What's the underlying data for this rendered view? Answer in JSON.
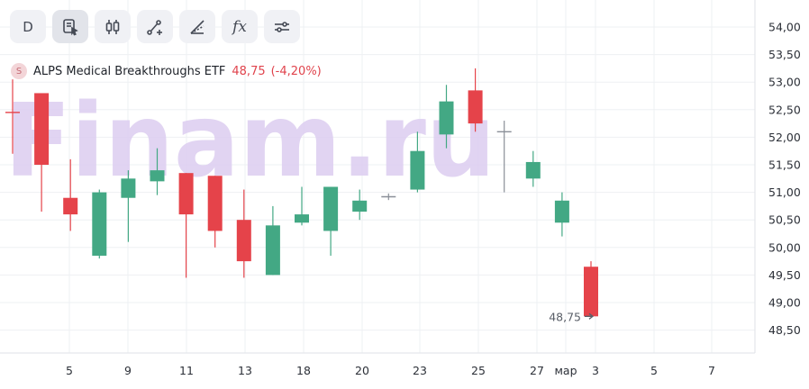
{
  "toolbar": {
    "interval_label": "D",
    "fx_label": "fx",
    "buttons": [
      "interval",
      "script-editor",
      "chart-type",
      "drawing-tools",
      "line-tools",
      "indicators",
      "settings"
    ]
  },
  "legend": {
    "badge": "S",
    "name": "ALPS Medical Breakthroughs ETF",
    "price": "48,75",
    "change": "(-4,20%)"
  },
  "watermark": "Finam.ru",
  "colors": {
    "up": "#43a884",
    "down": "#e5434a",
    "neutral": "#8a8f98",
    "grid": "#eef0f3",
    "watermark": "#dccdf0"
  },
  "chart_data": {
    "type": "candlestick",
    "title": "ALPS Medical Breakthroughs ETF",
    "ylim": [
      48.2,
      54.3
    ],
    "y_ticks": [
      "54,00",
      "53,50",
      "53,00",
      "52,50",
      "52,00",
      "51,50",
      "51,00",
      "50,50",
      "50,00",
      "49,50",
      "49,00",
      "48,50"
    ],
    "x_ticks": [
      "5",
      "9",
      "11",
      "13",
      "18",
      "20",
      "23",
      "25",
      "27",
      "мар",
      "3",
      "5",
      "7"
    ],
    "last_price_label": "48,75",
    "candles": [
      {
        "o": 52.45,
        "h": 53.05,
        "l": 51.7,
        "c": 52.45
      },
      {
        "o": 52.8,
        "h": 52.8,
        "l": 50.65,
        "c": 51.5
      },
      {
        "o": 50.9,
        "h": 51.6,
        "l": 50.3,
        "c": 50.6
      },
      {
        "o": 49.85,
        "h": 51.05,
        "l": 49.8,
        "c": 51.0
      },
      {
        "o": 50.9,
        "h": 51.4,
        "l": 50.1,
        "c": 51.25
      },
      {
        "o": 51.2,
        "h": 51.8,
        "l": 50.95,
        "c": 51.4
      },
      {
        "o": 51.35,
        "h": 51.35,
        "l": 49.45,
        "c": 50.6
      },
      {
        "o": 51.3,
        "h": 51.3,
        "l": 50.0,
        "c": 50.3
      },
      {
        "o": 50.5,
        "h": 51.05,
        "l": 49.45,
        "c": 49.75
      },
      {
        "o": 49.5,
        "h": 50.75,
        "l": 49.5,
        "c": 50.4
      },
      {
        "o": 50.45,
        "h": 51.1,
        "l": 50.4,
        "c": 50.6
      },
      {
        "o": 50.3,
        "h": 51.1,
        "l": 49.85,
        "c": 51.1
      },
      {
        "o": 50.65,
        "h": 51.05,
        "l": 50.5,
        "c": 50.85
      },
      {
        "o": 50.92,
        "h": 50.98,
        "l": 50.86,
        "c": 50.92
      },
      {
        "o": 51.05,
        "h": 52.1,
        "l": 51.0,
        "c": 51.75
      },
      {
        "o": 52.05,
        "h": 52.95,
        "l": 51.8,
        "c": 52.65
      },
      {
        "o": 52.85,
        "h": 53.25,
        "l": 52.1,
        "c": 52.25
      },
      {
        "o": 52.1,
        "h": 52.3,
        "l": 51.0,
        "c": 52.1
      },
      {
        "o": 51.25,
        "h": 51.75,
        "l": 51.1,
        "c": 51.55
      },
      {
        "o": 50.45,
        "h": 51.0,
        "l": 50.2,
        "c": 50.85
      },
      {
        "o": 49.65,
        "h": 49.75,
        "l": 48.75,
        "c": 48.75
      }
    ]
  }
}
